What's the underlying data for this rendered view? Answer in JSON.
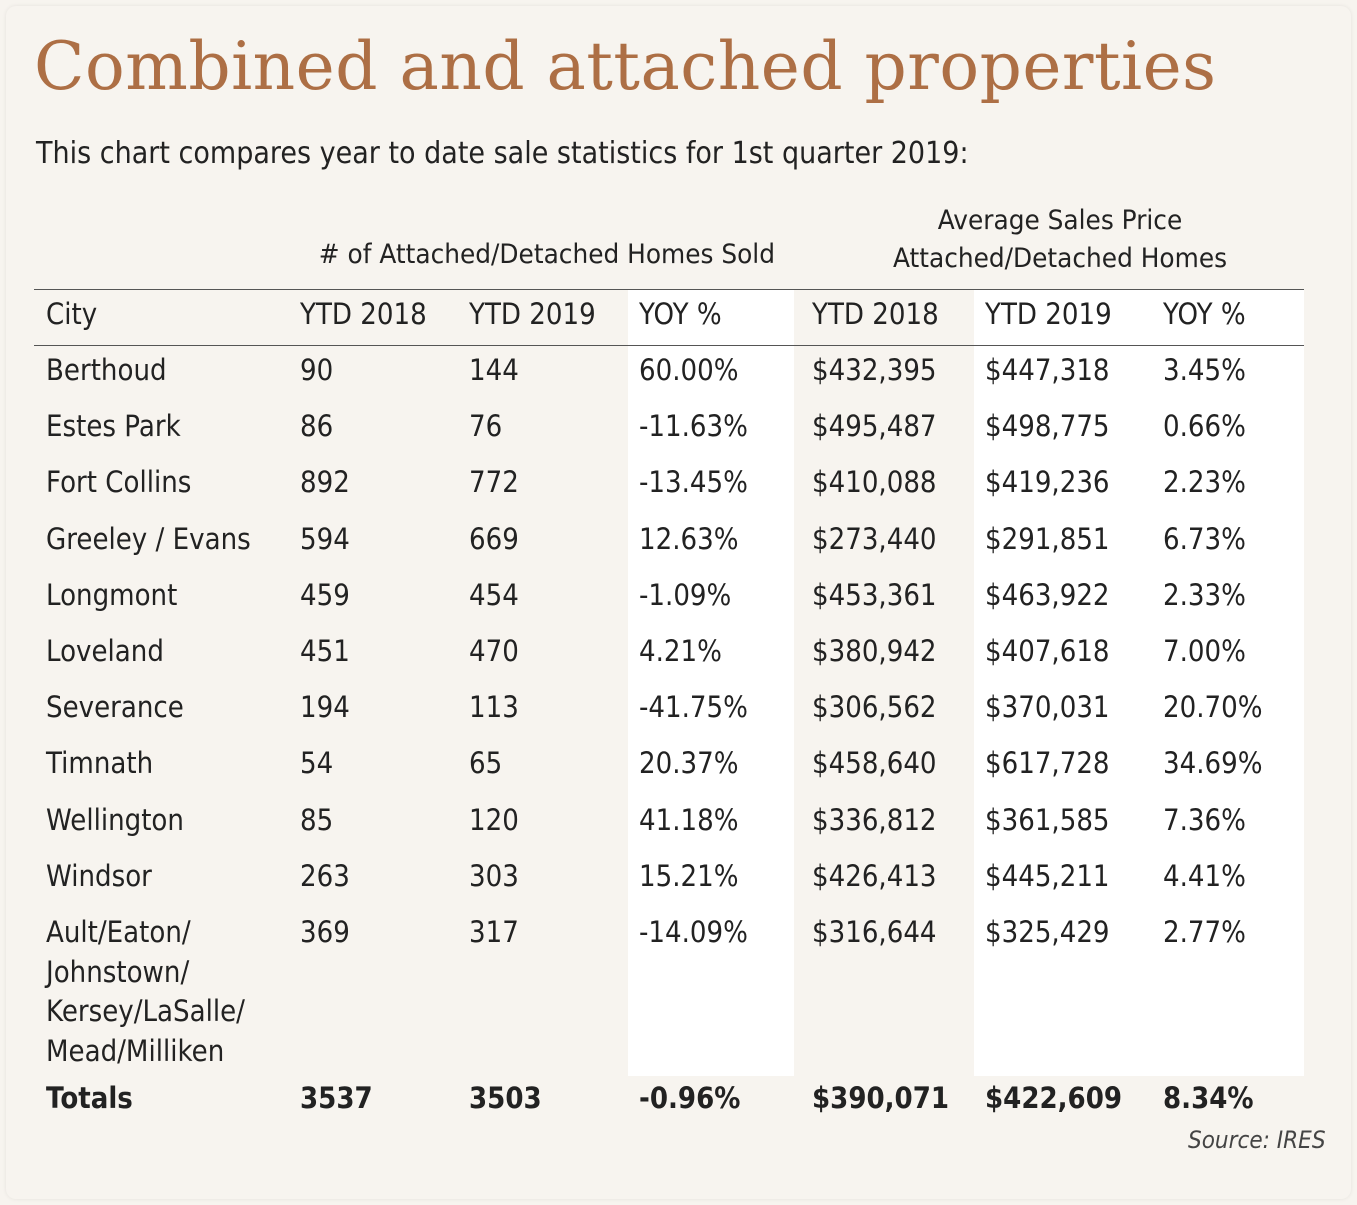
{
  "chart_data": {
    "type": "table",
    "title": "Combined and attached properties",
    "subtitle": "This chart compares year to date sale statistics for 1st quarter 2019:",
    "groups": [
      {
        "label": "# of Attached/Detached Homes Sold"
      },
      {
        "label_line1": "Average Sales Price",
        "label_line2": "Attached/Detached Homes"
      }
    ],
    "columns": [
      "City",
      "YTD 2018",
      "YTD 2019",
      "YOY %",
      "YTD 2018",
      "YTD 2019",
      "YOY %"
    ],
    "rows": [
      {
        "city": [
          "Berthoud"
        ],
        "homes_2018": "90",
        "homes_2019": "144",
        "homes_yoy": "60.00%",
        "price_2018": "$432,395",
        "price_2019": "$447,318",
        "price_yoy": "3.45%"
      },
      {
        "city": [
          "Estes Park"
        ],
        "homes_2018": "86",
        "homes_2019": "76",
        "homes_yoy": "-11.63%",
        "price_2018": "$495,487",
        "price_2019": "$498,775",
        "price_yoy": "0.66%"
      },
      {
        "city": [
          "Fort Collins"
        ],
        "homes_2018": "892",
        "homes_2019": "772",
        "homes_yoy": "-13.45%",
        "price_2018": "$410,088",
        "price_2019": "$419,236",
        "price_yoy": "2.23%"
      },
      {
        "city": [
          "Greeley / Evans"
        ],
        "homes_2018": "594",
        "homes_2019": "669",
        "homes_yoy": "12.63%",
        "price_2018": "$273,440",
        "price_2019": "$291,851",
        "price_yoy": "6.73%"
      },
      {
        "city": [
          "Longmont"
        ],
        "homes_2018": "459",
        "homes_2019": "454",
        "homes_yoy": "-1.09%",
        "price_2018": "$453,361",
        "price_2019": "$463,922",
        "price_yoy": "2.33%"
      },
      {
        "city": [
          "Loveland"
        ],
        "homes_2018": "451",
        "homes_2019": "470",
        "homes_yoy": "4.21%",
        "price_2018": "$380,942",
        "price_2019": "$407,618",
        "price_yoy": "7.00%"
      },
      {
        "city": [
          "Severance"
        ],
        "homes_2018": "194",
        "homes_2019": "113",
        "homes_yoy": "-41.75%",
        "price_2018": "$306,562",
        "price_2019": "$370,031",
        "price_yoy": "20.70%"
      },
      {
        "city": [
          "Timnath"
        ],
        "homes_2018": "54",
        "homes_2019": "65",
        "homes_yoy": "20.37%",
        "price_2018": "$458,640",
        "price_2019": "$617,728",
        "price_yoy": "34.69%"
      },
      {
        "city": [
          "Wellington"
        ],
        "homes_2018": "85",
        "homes_2019": "120",
        "homes_yoy": "41.18%",
        "price_2018": "$336,812",
        "price_2019": "$361,585",
        "price_yoy": "7.36%"
      },
      {
        "city": [
          "Windsor"
        ],
        "homes_2018": "263",
        "homes_2019": "303",
        "homes_yoy": "15.21%",
        "price_2018": "$426,413",
        "price_2019": "$445,211",
        "price_yoy": "4.41%"
      },
      {
        "city": [
          "Ault/Eaton/",
          "Johnstown/",
          "Kersey/LaSalle/",
          "Mead/Milliken"
        ],
        "homes_2018": "369",
        "homes_2019": "317",
        "homes_yoy": "-14.09%",
        "price_2018": "$316,644",
        "price_2019": "$325,429",
        "price_yoy": "2.77%"
      }
    ],
    "totals": {
      "city": "Totals",
      "homes_2018": "3537",
      "homes_2019": "3503",
      "homes_yoy": "-0.96%",
      "price_2018": "$390,071",
      "price_2019": "$422,609",
      "price_yoy": "8.34%"
    },
    "source": "Source: IRES",
    "title_color": "#ad6f45",
    "background_color": "#f7f4ef",
    "band_color": "#ffffff"
  }
}
